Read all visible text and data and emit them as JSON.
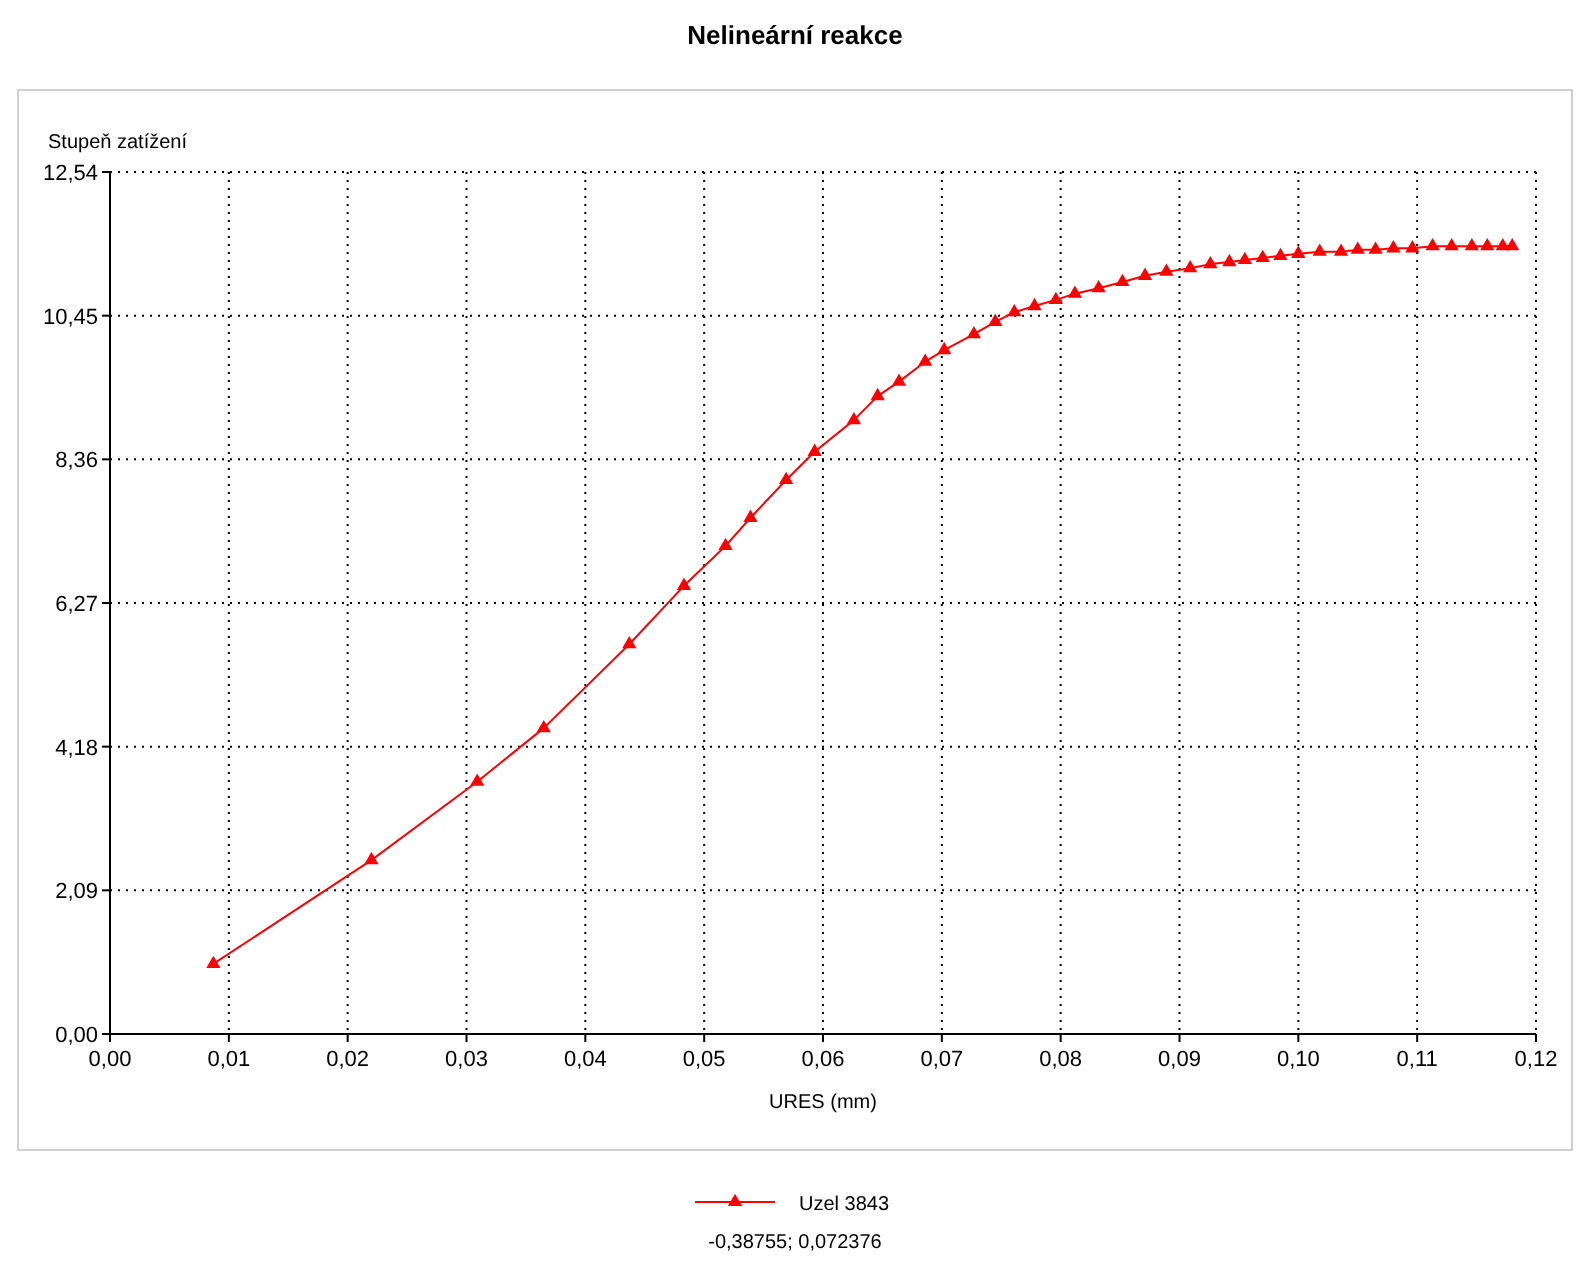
{
  "chart_data": {
    "type": "line",
    "title": "Nelineární reakce",
    "xlabel": "URES (mm)",
    "ylabel": "Stupeň zatížení",
    "xlim": [
      0,
      0.12
    ],
    "ylim": [
      0,
      12.54
    ],
    "xticks": [
      {
        "value": 0,
        "label": "0,00"
      },
      {
        "value": 0.01,
        "label": "0,01"
      },
      {
        "value": 0.02,
        "label": "0,02"
      },
      {
        "value": 0.03,
        "label": "0,03"
      },
      {
        "value": 0.04,
        "label": "0,04"
      },
      {
        "value": 0.05,
        "label": "0,05"
      },
      {
        "value": 0.06,
        "label": "0,06"
      },
      {
        "value": 0.07,
        "label": "0,07"
      },
      {
        "value": 0.08,
        "label": "0,08"
      },
      {
        "value": 0.09,
        "label": "0,09"
      },
      {
        "value": 0.1,
        "label": "0,10"
      },
      {
        "value": 0.11,
        "label": "0,11"
      },
      {
        "value": 0.12,
        "label": "0,12"
      }
    ],
    "yticks": [
      {
        "value": 0,
        "label": "0,00"
      },
      {
        "value": 2.09,
        "label": "2,09"
      },
      {
        "value": 4.18,
        "label": "4,18"
      },
      {
        "value": 6.27,
        "label": "6,27"
      },
      {
        "value": 8.36,
        "label": "8,36"
      },
      {
        "value": 10.45,
        "label": "10,45"
      },
      {
        "value": 12.54,
        "label": "12,54"
      }
    ],
    "grid": true,
    "legend": "bottom",
    "marker": "triangle",
    "line_style": "solid",
    "annotations": [
      "-0,38755; 0,072376"
    ],
    "series": [
      {
        "name": "Uzel 3843",
        "color": "#ff0000",
        "x": [
          0.0087,
          0.022,
          0.0309,
          0.0365,
          0.0437,
          0.0483,
          0.0518,
          0.0539,
          0.0569,
          0.0593,
          0.0626,
          0.0646,
          0.0664,
          0.0686,
          0.0702,
          0.0727,
          0.0745,
          0.0761,
          0.0778,
          0.0796,
          0.0812,
          0.0832,
          0.0852,
          0.0871,
          0.0889,
          0.0909,
          0.0926,
          0.0942,
          0.0955,
          0.097,
          0.0985,
          0.1,
          0.1018,
          0.1036,
          0.105,
          0.1065,
          0.108,
          0.1096,
          0.1113,
          0.1129,
          0.1146,
          0.1159,
          0.1172,
          0.118
        ],
        "values": [
          1.02,
          2.53,
          3.67,
          4.45,
          5.67,
          6.52,
          7.1,
          7.51,
          8.06,
          8.47,
          8.93,
          9.28,
          9.49,
          9.78,
          9.95,
          10.18,
          10.36,
          10.5,
          10.59,
          10.68,
          10.77,
          10.85,
          10.94,
          11.03,
          11.09,
          11.14,
          11.2,
          11.23,
          11.26,
          11.29,
          11.32,
          11.35,
          11.38,
          11.38,
          11.41,
          11.41,
          11.43,
          11.43,
          11.46,
          11.46,
          11.46,
          11.46,
          11.46,
          11.46
        ]
      }
    ]
  }
}
